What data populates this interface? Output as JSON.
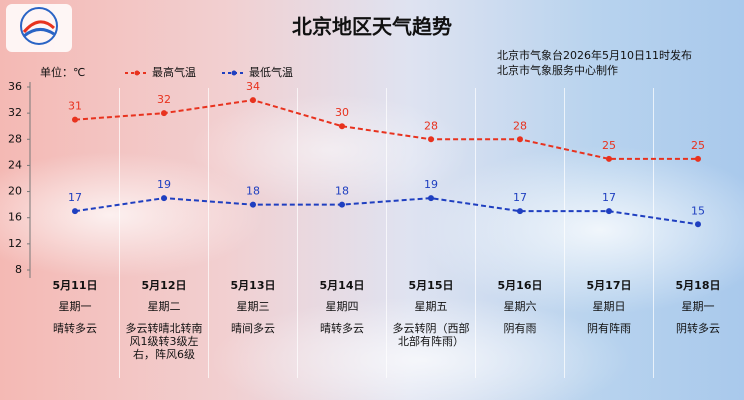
{
  "chart_data": {
    "type": "line",
    "title": "北京地区天气趋势",
    "subtitle": [
      "北京市气象台2026年5月10日11时发布",
      "北京市气象服务中心制作"
    ],
    "unit_label": "单位：℃",
    "categories": [
      "5月11日",
      "5月12日",
      "5月13日",
      "5月14日",
      "5月15日",
      "5月16日",
      "5月17日",
      "5月18日"
    ],
    "weekdays": [
      "星期一",
      "星期二",
      "星期三",
      "星期四",
      "星期五",
      "星期六",
      "星期日",
      "星期一"
    ],
    "weather": [
      "晴转多云",
      "多云转晴北转南风1级转3级左右，阵风6级",
      "晴间多云",
      "晴转多云",
      "多云转阴（西部北部有阵雨）",
      "阴有雨",
      "阴有阵雨",
      "阴转多云"
    ],
    "series": [
      {
        "name": "最高气温",
        "color": "#e8321e",
        "values": [
          31,
          32,
          34,
          30,
          28,
          28,
          25,
          25
        ]
      },
      {
        "name": "最低气温",
        "color": "#1f3fc0",
        "values": [
          17,
          19,
          18,
          18,
          19,
          17,
          17,
          15
        ]
      }
    ],
    "ylim": [
      8,
      36
    ],
    "yticks": [
      8,
      12,
      16,
      20,
      24,
      28,
      32,
      36
    ],
    "grid": false
  }
}
